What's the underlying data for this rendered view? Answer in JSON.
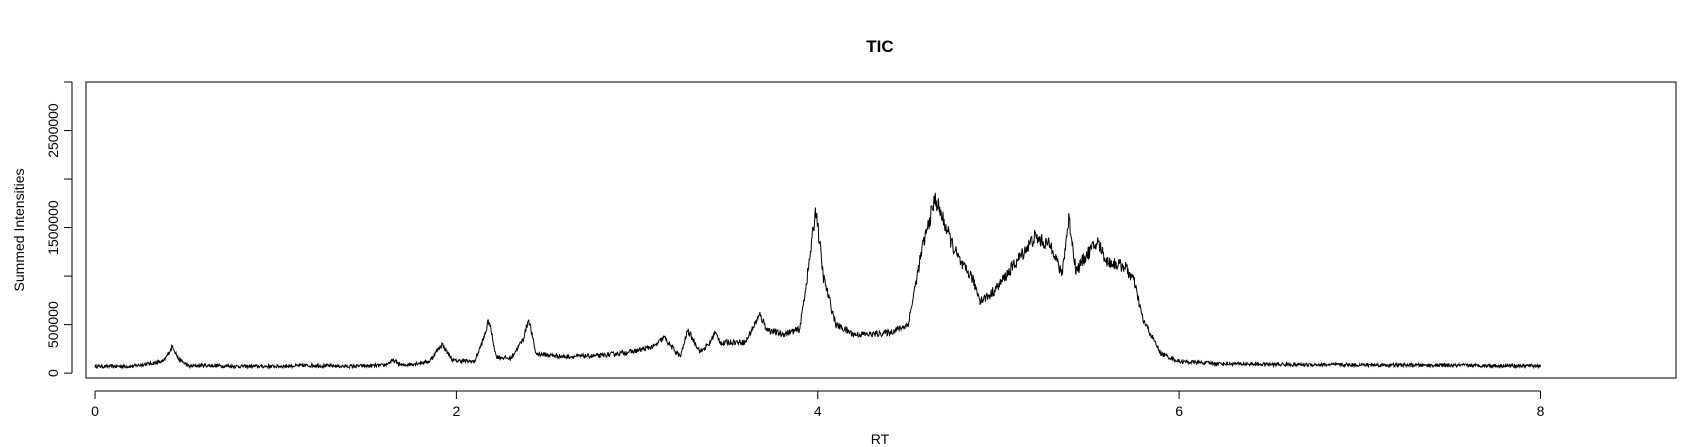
{
  "chart_data": {
    "type": "line",
    "title": "TIC",
    "xlabel": "RT",
    "ylabel": "Summed Intensities",
    "xlim": [
      -0.05,
      8.75
    ],
    "ylim": [
      -50000,
      3000000
    ],
    "xticks": [
      0,
      2,
      4,
      6,
      8
    ],
    "yticks": [
      0,
      500000,
      1000000,
      1500000,
      2000000,
      2500000,
      3000000
    ],
    "ytick_labels": [
      "0",
      "500000",
      "",
      "1500000",
      "",
      "2500000",
      ""
    ],
    "xtick_labels": [
      "0",
      "2",
      "4",
      "6",
      "8"
    ],
    "grid": false,
    "legend": "none",
    "line_color": "#000000",
    "series": [
      {
        "x": [
          0.0,
          0.2,
          0.38,
          0.43,
          0.46,
          0.52,
          0.6,
          0.8,
          1.0,
          1.2,
          1.4,
          1.6,
          1.65,
          1.7,
          1.85,
          1.92,
          1.98,
          2.1,
          2.15,
          2.18,
          2.22,
          2.3,
          2.37,
          2.4,
          2.44,
          2.6,
          2.8,
          3.0,
          3.1,
          3.15,
          3.2,
          3.24,
          3.28,
          3.35,
          3.4,
          3.43,
          3.47,
          3.5,
          3.6,
          3.65,
          3.68,
          3.72,
          3.8,
          3.9,
          3.95,
          3.99,
          4.03,
          4.1,
          4.2,
          4.3,
          4.4,
          4.5,
          4.58,
          4.65,
          4.7,
          4.75,
          4.8,
          4.85,
          4.9,
          4.95,
          5.0,
          5.1,
          5.2,
          5.3,
          5.35,
          5.39,
          5.43,
          5.48,
          5.55,
          5.6,
          5.7,
          5.75,
          5.8,
          5.9,
          6.0,
          6.2,
          6.5,
          7.0,
          7.5,
          8.0
        ],
        "y": [
          70000,
          70000,
          120000,
          280000,
          150000,
          70000,
          80000,
          70000,
          70000,
          80000,
          70000,
          80000,
          130000,
          80000,
          120000,
          300000,
          130000,
          120000,
          350000,
          550000,
          170000,
          150000,
          350000,
          560000,
          200000,
          170000,
          180000,
          230000,
          280000,
          370000,
          250000,
          170000,
          440000,
          220000,
          300000,
          420000,
          300000,
          320000,
          320000,
          500000,
          600000,
          450000,
          400000,
          450000,
          1100000,
          1700000,
          1000000,
          500000,
          400000,
          400000,
          420000,
          500000,
          1300000,
          1800000,
          1550000,
          1300000,
          1100000,
          1000000,
          750000,
          800000,
          900000,
          1150000,
          1400000,
          1300000,
          1000000,
          1600000,
          1050000,
          1200000,
          1350000,
          1150000,
          1100000,
          950000,
          550000,
          200000,
          120000,
          100000,
          90000,
          85000,
          80000,
          75000
        ]
      }
    ]
  }
}
